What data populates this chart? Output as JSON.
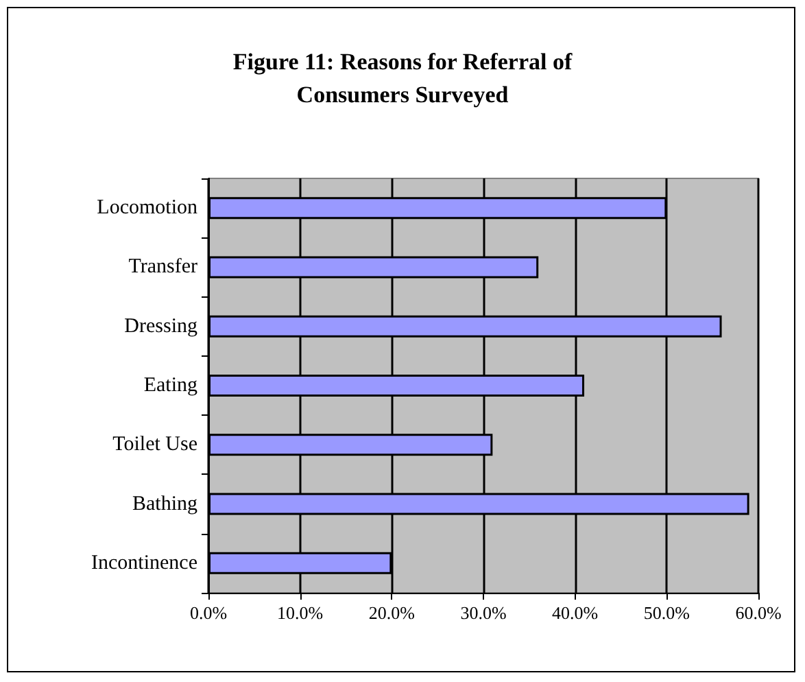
{
  "chart_data": {
    "type": "bar",
    "orientation": "horizontal",
    "title": "Figure 11: Reasons for Referral of\nConsumers Surveyed",
    "categories": [
      "Locomotion",
      "Transfer",
      "Dressing",
      "Eating",
      "Toilet Use",
      "Bathing",
      "Incontinence"
    ],
    "values": [
      50,
      36,
      56,
      41,
      31,
      59,
      20
    ],
    "color": "#9999ff",
    "xlim": [
      0,
      60
    ],
    "xticks": [
      {
        "value": 0,
        "label": "0.0%"
      },
      {
        "value": 10,
        "label": "10.0%"
      },
      {
        "value": 20,
        "label": "20.0%"
      },
      {
        "value": 30,
        "label": "30.0%"
      },
      {
        "value": 40,
        "label": "40.0%"
      },
      {
        "value": 50,
        "label": "50.0%"
      },
      {
        "value": 60,
        "label": "60.0%"
      }
    ],
    "grid": "x"
  }
}
